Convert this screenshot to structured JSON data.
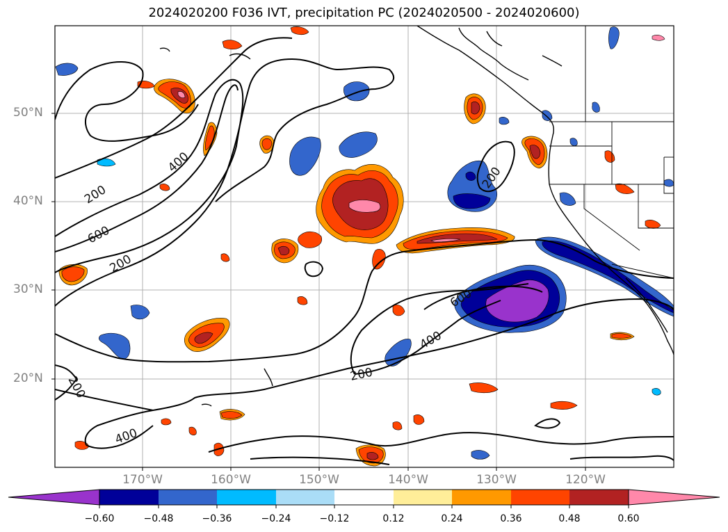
{
  "title": "2024020200 F036 IVT, precipitation PC (2024020500 - 2024020600)",
  "latitude_labels": [
    "50°N",
    "40°N",
    "30°N",
    "20°N"
  ],
  "longitude_labels": [
    "170°W",
    "160°W",
    "150°W",
    "140°W",
    "130°W",
    "120°W"
  ],
  "contour_labels": [
    "400",
    "200",
    "600",
    "200",
    "200",
    "600",
    "400",
    "200",
    "200",
    "400"
  ],
  "colorbar": {
    "tick_labels": [
      "−0.60",
      "−0.48",
      "−0.36",
      "−0.24",
      "−0.12",
      "0.12",
      "0.24",
      "0.36",
      "0.48",
      "0.60"
    ],
    "colors": [
      "#9933cc",
      "#000099",
      "#3366cc",
      "#00bbff",
      "#aaddf7",
      "#ffffff",
      "#ffee99",
      "#ff9900",
      "#ff4400",
      "#b22222",
      "#ff88aa"
    ]
  }
}
